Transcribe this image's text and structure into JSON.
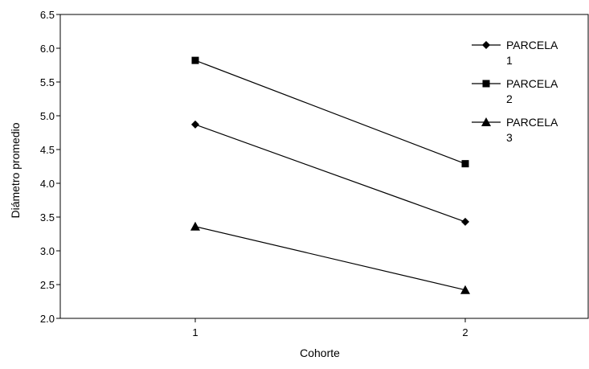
{
  "chart_data": {
    "type": "line",
    "title": "",
    "xlabel": "Cohorte",
    "ylabel": "Diámetro promedio",
    "categories": [
      "1",
      "2"
    ],
    "ylim": [
      2.0,
      6.5
    ],
    "yticks": [
      "2.0",
      "2.5",
      "3.0",
      "3.5",
      "4.0",
      "4.5",
      "5.0",
      "5.5",
      "6.0",
      "6.5"
    ],
    "grid": false,
    "legend_position": "top-right",
    "series": [
      {
        "name": "PARCELA 1",
        "legend_lines": [
          "PARCELA",
          "1"
        ],
        "marker": "diamond",
        "values": [
          4.87,
          3.43
        ]
      },
      {
        "name": "PARCELA 2",
        "legend_lines": [
          "PARCELA",
          "2"
        ],
        "marker": "square",
        "values": [
          5.82,
          4.29
        ]
      },
      {
        "name": "PARCELA 3",
        "legend_lines": [
          "PARCELA",
          "3"
        ],
        "marker": "triangle",
        "values": [
          3.36,
          2.42
        ]
      }
    ],
    "line_color": "#000000"
  }
}
